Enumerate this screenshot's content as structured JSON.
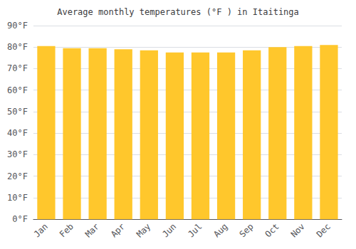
{
  "chart_data": {
    "type": "bar",
    "title": "Average monthly temperatures (°F ) in Itaitinga",
    "categories": [
      "Jan",
      "Feb",
      "Mar",
      "Apr",
      "May",
      "Jun",
      "Jul",
      "Aug",
      "Sep",
      "Oct",
      "Nov",
      "Dec"
    ],
    "values": [
      80.5,
      79.5,
      79.5,
      79.0,
      78.5,
      77.5,
      77.5,
      77.5,
      78.5,
      80.0,
      80.5,
      81.0
    ],
    "color": "#FFC72C",
    "ylim": [
      0,
      90
    ],
    "yticks": [
      {
        "value": 0,
        "label": "0°F"
      },
      {
        "value": 10,
        "label": "10°F"
      },
      {
        "value": 20,
        "label": "20°F"
      },
      {
        "value": 30,
        "label": "30°F"
      },
      {
        "value": 40,
        "label": "40°F"
      },
      {
        "value": 50,
        "label": "50°F"
      },
      {
        "value": 60,
        "label": "60°F"
      },
      {
        "value": 70,
        "label": "70°F"
      },
      {
        "value": 80,
        "label": "80°F"
      },
      {
        "value": 90,
        "label": "90°F"
      }
    ],
    "grid": true
  }
}
